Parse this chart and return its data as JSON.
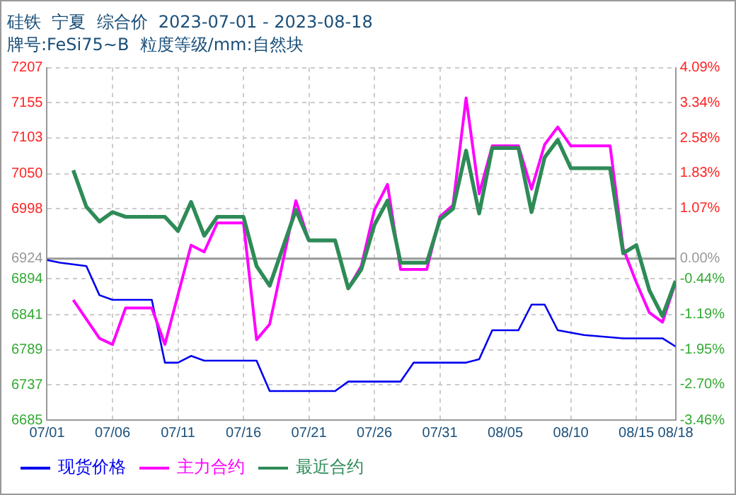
{
  "chart_data": {
    "type": "line",
    "title": "硅铁  宁夏  综合价  2023-07-01 - 2023-08-18",
    "subtitle": "牌号:FeSi75~B  粒度等级/mm:自然块",
    "xlim": [
      "2023-07-01",
      "2023-08-18"
    ],
    "xticks": [
      {
        "value": "2023-07-01",
        "label": "07/01"
      },
      {
        "value": "2023-07-06",
        "label": "07/06"
      },
      {
        "value": "2023-07-11",
        "label": "07/11"
      },
      {
        "value": "2023-07-16",
        "label": "07/16"
      },
      {
        "value": "2023-07-21",
        "label": "07/21"
      },
      {
        "value": "2023-07-26",
        "label": "07/26"
      },
      {
        "value": "2023-07-31",
        "label": "07/31"
      },
      {
        "value": "2023-08-05",
        "label": "08/05"
      },
      {
        "value": "2023-08-10",
        "label": "08/10"
      },
      {
        "value": "2023-08-15",
        "label": "08/15"
      },
      {
        "value": "2023-08-18",
        "label": "08/18"
      }
    ],
    "ylim": [
      6685,
      7207
    ],
    "yticks": [
      6685,
      6737,
      6789,
      6841,
      6894,
      6924,
      6998,
      7050,
      7103,
      7155,
      7207
    ],
    "y2lim": [
      -3.46,
      4.09
    ],
    "y2ticks": [
      {
        "value": -3.46,
        "label": "-3.46%"
      },
      {
        "value": -2.7,
        "label": "-2.70%"
      },
      {
        "value": -1.95,
        "label": "-1.95%"
      },
      {
        "value": -1.19,
        "label": "-1.19%"
      },
      {
        "value": -0.44,
        "label": "-0.44%"
      },
      {
        "value": 0,
        "label": "0.00%"
      },
      {
        "value": 1.07,
        "label": "1.07%"
      },
      {
        "value": 1.83,
        "label": "1.83%"
      },
      {
        "value": 2.58,
        "label": "2.58%"
      },
      {
        "value": 3.34,
        "label": "3.34%"
      },
      {
        "value": 4.09,
        "label": "4.09%"
      }
    ],
    "ref_lines": [
      {
        "axis": "y",
        "value": 6924,
        "color": "#999999"
      }
    ],
    "grid": true,
    "legend": "bottom",
    "marker": "none",
    "line_style": "solid",
    "series": [
      {
        "name": "现货价格",
        "color": "#0000ee",
        "x": [
          "2023-07-01",
          "2023-07-02",
          "2023-07-04",
          "2023-07-05",
          "2023-07-06",
          "2023-07-09",
          "2023-07-10",
          "2023-07-11",
          "2023-07-12",
          "2023-07-13",
          "2023-07-14",
          "2023-07-17",
          "2023-07-18",
          "2023-07-23",
          "2023-07-24",
          "2023-07-28",
          "2023-07-29",
          "2023-08-02",
          "2023-08-03",
          "2023-08-04",
          "2023-08-06",
          "2023-08-07",
          "2023-08-08",
          "2023-08-09",
          "2023-08-11",
          "2023-08-14",
          "2023-08-17",
          "2023-08-18"
        ],
        "values": [
          6922,
          6918,
          6913,
          6870,
          6863,
          6863,
          6770,
          6770,
          6780,
          6773,
          6773,
          6773,
          6728,
          6728,
          6742,
          6742,
          6770,
          6770,
          6775,
          6818,
          6818,
          6856,
          6856,
          6818,
          6811,
          6806,
          6806,
          6794
        ]
      },
      {
        "name": "主力合约",
        "color": "#ff00ff",
        "x": [
          "2023-07-03",
          "2023-07-05",
          "2023-07-06",
          "2023-07-07",
          "2023-07-09",
          "2023-07-10",
          "2023-07-12",
          "2023-07-13",
          "2023-07-14",
          "2023-07-16",
          "2023-07-17",
          "2023-07-18",
          "2023-07-20",
          "2023-07-21",
          "2023-07-23",
          "2023-07-24",
          "2023-07-25",
          "2023-07-26",
          "2023-07-27",
          "2023-07-28",
          "2023-07-30",
          "2023-07-31",
          "2023-08-01",
          "2023-08-02",
          "2023-08-03",
          "2023-08-04",
          "2023-08-06",
          "2023-08-07",
          "2023-08-08",
          "2023-08-09",
          "2023-08-10",
          "2023-08-13",
          "2023-08-14",
          "2023-08-15",
          "2023-08-16",
          "2023-08-17",
          "2023-08-18"
        ],
        "values": [
          6863,
          6806,
          6797,
          6851,
          6851,
          6797,
          6944,
          6934,
          6977,
          6977,
          6804,
          6827,
          7010,
          6951,
          6951,
          6880,
          6913,
          6996,
          7034,
          6908,
          6908,
          6986,
          7003,
          7162,
          7020,
          7091,
          7091,
          7027,
          7093,
          7119,
          7091,
          7091,
          6939,
          6889,
          6844,
          6830,
          6889
        ]
      },
      {
        "name": "最近合约",
        "color": "#2e8b57",
        "x": [
          "2023-07-03",
          "2023-07-04",
          "2023-07-05",
          "2023-07-06",
          "2023-07-07",
          "2023-07-10",
          "2023-07-11",
          "2023-07-12",
          "2023-07-13",
          "2023-07-14",
          "2023-07-16",
          "2023-07-17",
          "2023-07-18",
          "2023-07-20",
          "2023-07-21",
          "2023-07-23",
          "2023-07-24",
          "2023-07-25",
          "2023-07-26",
          "2023-07-27",
          "2023-07-28",
          "2023-07-30",
          "2023-07-31",
          "2023-08-01",
          "2023-08-02",
          "2023-08-03",
          "2023-08-04",
          "2023-08-06",
          "2023-08-07",
          "2023-08-08",
          "2023-08-09",
          "2023-08-10",
          "2023-08-13",
          "2023-08-14",
          "2023-08-15",
          "2023-08-16",
          "2023-08-17",
          "2023-08-18"
        ],
        "values": [
          7055,
          7001,
          6979,
          6993,
          6986,
          6986,
          6965,
          7008,
          6958,
          6986,
          6986,
          6913,
          6884,
          6996,
          6951,
          6951,
          6880,
          6908,
          6974,
          7010,
          6918,
          6918,
          6982,
          6998,
          7084,
          6991,
          7088,
          7088,
          6993,
          7074,
          7100,
          7058,
          7058,
          6932,
          6944,
          6877,
          6839,
          6891
        ]
      }
    ]
  }
}
